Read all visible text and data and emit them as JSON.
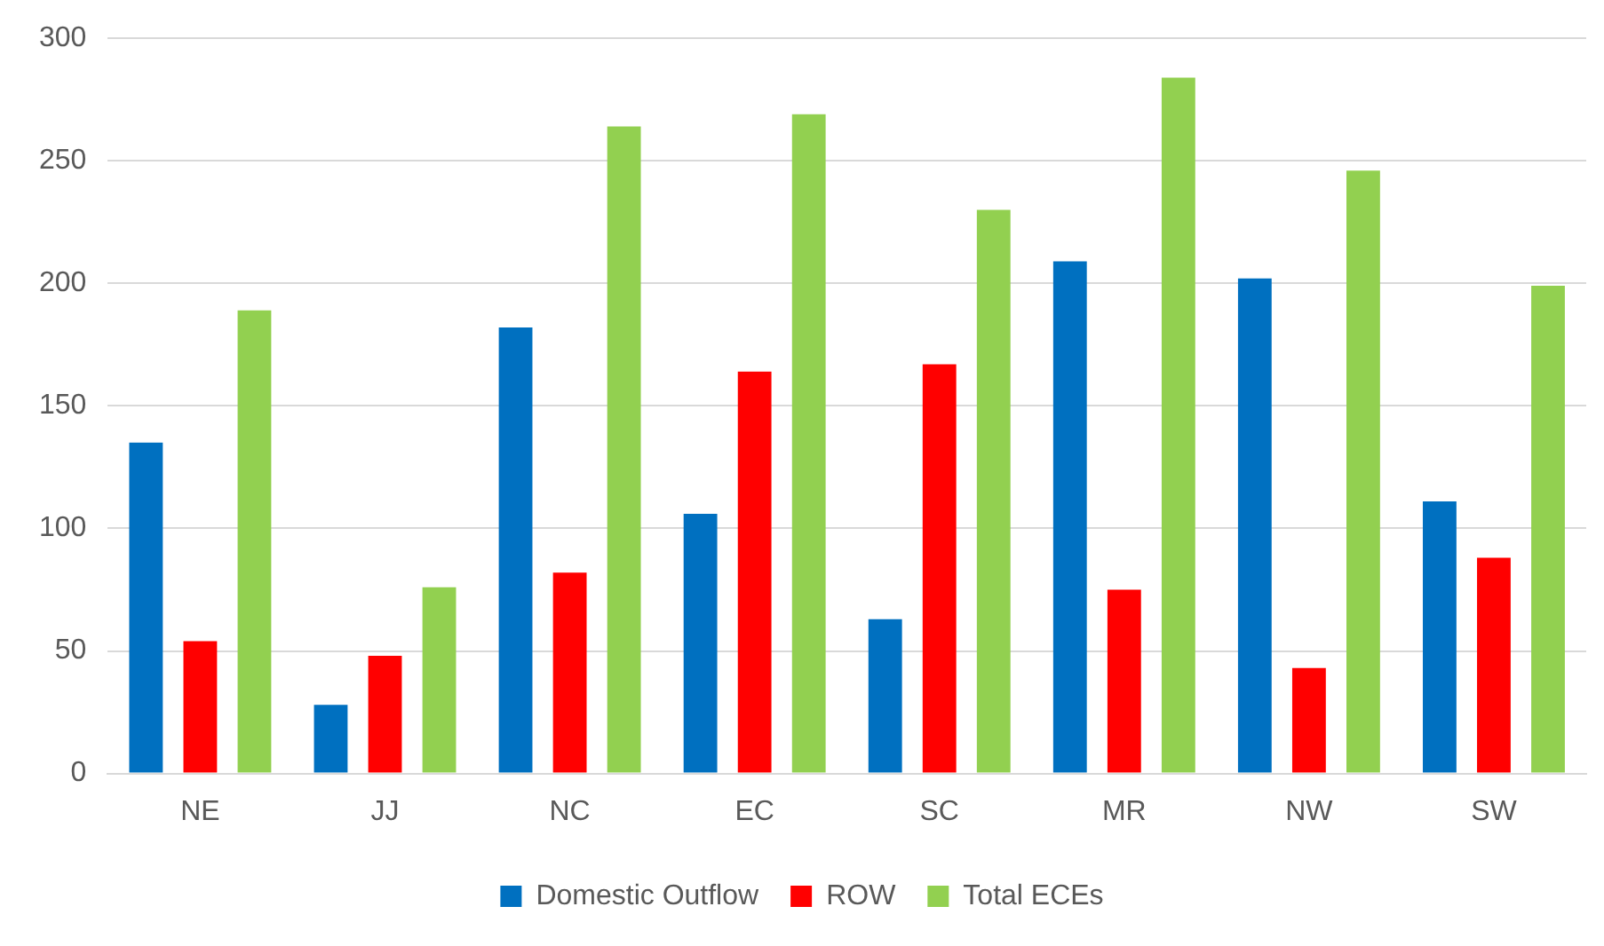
{
  "chart_data": {
    "type": "bar",
    "categories": [
      "NE",
      "JJ",
      "NC",
      "EC",
      "SC",
      "MR",
      "NW",
      "SW"
    ],
    "series": [
      {
        "name": "Domestic Outflow",
        "color": "#0070c0",
        "values": [
          135,
          28,
          182,
          106,
          63,
          209,
          202,
          111
        ]
      },
      {
        "name": "ROW",
        "color": "#ff0000",
        "values": [
          54,
          48,
          82,
          164,
          167,
          75,
          43,
          88
        ]
      },
      {
        "name": "Total ECEs",
        "color": "#92d050",
        "values": [
          189,
          76,
          264,
          269,
          230,
          284,
          246,
          199
        ]
      }
    ],
    "ylim": [
      0,
      300
    ],
    "yticks": [
      0,
      50,
      100,
      150,
      200,
      250,
      300
    ],
    "grid": "y",
    "legend": "bottom"
  }
}
